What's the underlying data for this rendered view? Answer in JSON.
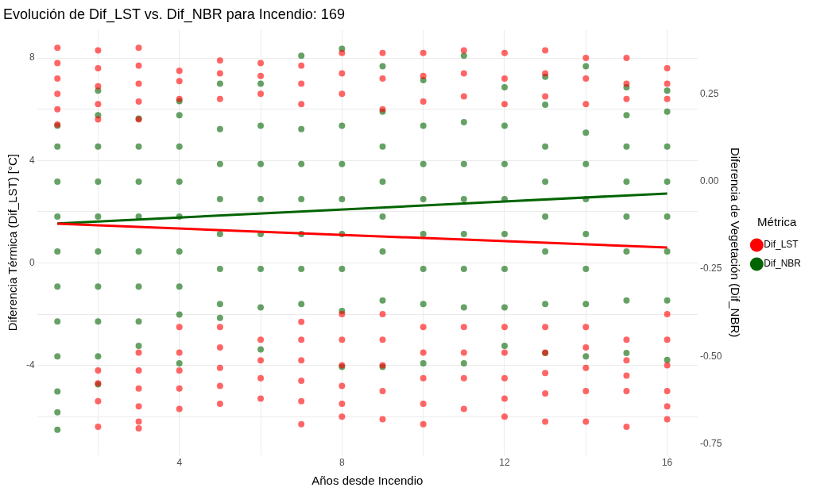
{
  "chart_data": {
    "type": "scatter",
    "title": "Evolución de Dif_LST vs. Dif_NBR para Incendio: 169",
    "xlabel": "Años desde Incendio",
    "ylabel": "Diferencia Térmica (Dif_LST) [°C]",
    "y2label": "Diferencia de Vegetación (Dif_NBR)",
    "legend_title": "Métrica",
    "legend": "right",
    "grid": true,
    "marker": "circle",
    "xlim": [
      0.5,
      16.75
    ],
    "xticks": [
      {
        "value": 2,
        "label": null
      },
      4,
      {
        "value": 6,
        "label": null
      },
      8,
      {
        "value": 10,
        "label": null
      },
      12,
      {
        "value": 14,
        "label": null
      },
      16
    ],
    "ylim": [
      -7.5,
      9.1
    ],
    "yticks": [
      {
        "value": -6,
        "label": null
      },
      -4,
      {
        "value": -2,
        "label": null
      },
      0,
      {
        "value": 2,
        "label": null
      },
      4,
      {
        "value": 6,
        "label": null
      },
      8
    ],
    "y2lim": [
      -0.782,
      0.434
    ],
    "y2ticks": [
      {
        "value": -0.75,
        "label": "-0.75"
      },
      {
        "value": -0.5,
        "label": "-0.50"
      },
      {
        "value": -0.25,
        "label": "-0.25"
      },
      {
        "value": 0,
        "label": "0.00"
      },
      {
        "value": 0.25,
        "label": "0.25"
      }
    ],
    "series": [
      {
        "name": "Dif_LST",
        "axis": "y",
        "color": "#ff0000",
        "x": [
          1,
          1,
          1,
          1,
          1,
          1,
          2,
          2,
          2,
          2,
          2,
          2,
          2,
          2,
          2,
          3,
          3,
          3,
          3,
          3,
          3,
          3,
          3,
          3,
          3,
          3,
          4,
          4,
          4,
          4,
          4,
          4,
          4,
          4,
          5,
          5,
          5,
          5,
          5,
          5,
          5,
          5,
          6,
          6,
          6,
          6,
          6,
          6,
          6,
          7,
          7,
          7,
          7,
          7,
          7,
          7,
          7,
          7,
          8,
          8,
          8,
          8,
          8,
          8,
          8,
          8,
          8,
          9,
          9,
          9,
          9,
          9,
          9,
          9,
          9,
          10,
          10,
          10,
          10,
          10,
          10,
          10,
          10,
          11,
          11,
          11,
          11,
          11,
          11,
          11,
          12,
          12,
          12,
          12,
          12,
          12,
          12,
          12,
          13,
          13,
          13,
          13,
          13,
          13,
          13,
          13,
          14,
          14,
          14,
          14,
          14,
          14,
          14,
          14,
          15,
          15,
          15,
          15,
          15,
          15,
          15,
          15,
          16,
          16,
          16,
          16,
          16,
          16,
          16,
          16,
          16
        ],
        "values": [
          8.4,
          7.8,
          7.2,
          6.6,
          6.0,
          5.4,
          8.3,
          7.6,
          6.9,
          6.2,
          5.6,
          -4.2,
          -4.7,
          -5.4,
          -6.4,
          8.4,
          7.7,
          7.0,
          6.3,
          5.6,
          -3.5,
          -4.2,
          -4.9,
          -5.6,
          -6.2,
          -6.46,
          7.5,
          7.1,
          6.4,
          -2.5,
          -3.5,
          -4.2,
          -4.9,
          -5.7,
          7.9,
          7.4,
          6.4,
          -2.5,
          -3.3,
          -4.1,
          -4.8,
          -5.5,
          7.8,
          7.3,
          6.6,
          -3.0,
          -3.8,
          -4.5,
          -5.3,
          7.7,
          7.0,
          6.2,
          -2.3,
          -3.0,
          -3.8,
          -4.6,
          -5.4,
          -6.3,
          8.2,
          7.4,
          6.6,
          -2.0,
          -3.0,
          -4.0,
          -4.8,
          -5.5,
          -6.0,
          8.2,
          7.2,
          6.0,
          -2.0,
          -3.0,
          -4.0,
          -5.0,
          -6.1,
          8.2,
          7.3,
          6.3,
          -2.5,
          -3.5,
          -4.5,
          -5.5,
          -6.3,
          8.3,
          7.4,
          6.5,
          -2.5,
          -3.5,
          -4.5,
          -5.7,
          8.2,
          7.2,
          6.2,
          -2.5,
          -3.5,
          -4.5,
          -5.3,
          -6.0,
          8.3,
          7.4,
          6.5,
          -2.5,
          -3.5,
          -4.3,
          -5.1,
          -6.2,
          8.0,
          7.2,
          6.2,
          -2.5,
          -3.3,
          -4.1,
          -5.0,
          -6.2,
          8.0,
          7.0,
          6.4,
          -3.0,
          -3.8,
          -4.4,
          -5.0,
          -6.4,
          7.6,
          7.0,
          6.4,
          -2.0,
          -3.0,
          -4.0,
          -5.0,
          -5.6,
          -6.1
        ]
      },
      {
        "name": "Dif_NBR",
        "axis": "y2",
        "color": "#006400",
        "x": [
          1,
          1,
          1,
          1,
          1,
          1,
          1,
          1,
          1,
          1,
          1,
          2,
          2,
          2,
          2,
          2,
          2,
          2,
          2,
          2,
          2,
          3,
          3,
          3,
          3,
          3,
          3,
          3,
          3,
          4,
          4,
          4,
          4,
          4,
          4,
          4,
          4,
          4,
          5,
          5,
          5,
          5,
          5,
          5,
          5,
          5,
          6,
          6,
          6,
          6,
          6,
          6,
          6,
          6,
          7,
          7,
          7,
          7,
          7,
          7,
          7,
          8,
          8,
          8,
          8,
          8,
          8,
          8,
          8,
          9,
          9,
          9,
          9,
          9,
          9,
          9,
          9,
          10,
          10,
          10,
          10,
          10,
          10,
          10,
          10,
          11,
          11,
          11,
          11,
          11,
          11,
          11,
          11,
          12,
          12,
          12,
          12,
          12,
          12,
          12,
          12,
          13,
          13,
          13,
          13,
          13,
          13,
          13,
          13,
          14,
          14,
          14,
          14,
          14,
          14,
          14,
          14,
          15,
          15,
          15,
          15,
          15,
          15,
          15,
          15,
          16,
          16,
          16,
          16,
          16,
          16,
          16,
          16
        ],
        "values": [
          0.16,
          0.1,
          0,
          -0.1,
          -0.2,
          -0.3,
          -0.4,
          -0.5,
          -0.6,
          -0.66,
          -0.71,
          0.26,
          0.19,
          0.1,
          0,
          -0.1,
          -0.2,
          -0.3,
          -0.4,
          -0.5,
          -0.58,
          0.18,
          0.1,
          0,
          -0.1,
          -0.2,
          -0.3,
          -0.4,
          -0.47,
          0.23,
          0.19,
          0.1,
          0,
          -0.1,
          -0.2,
          -0.3,
          -0.38,
          -0.52,
          0.28,
          0.15,
          0.05,
          -0.05,
          -0.15,
          -0.25,
          -0.35,
          -0.39,
          0.28,
          0.16,
          0.05,
          -0.05,
          -0.15,
          -0.25,
          -0.36,
          -0.48,
          0.36,
          0.15,
          0.05,
          -0.05,
          -0.15,
          -0.25,
          -0.35,
          0.38,
          0.16,
          0.05,
          -0.05,
          -0.15,
          -0.25,
          -0.37,
          -0.53,
          0.33,
          0.2,
          0.1,
          0,
          -0.1,
          -0.2,
          -0.34,
          -0.53,
          0.29,
          0.16,
          0.05,
          -0.05,
          -0.15,
          -0.25,
          -0.35,
          -0.52,
          0.36,
          0.17,
          0.05,
          -0.05,
          -0.15,
          -0.25,
          -0.36,
          -0.52,
          0.27,
          0.16,
          0.05,
          -0.05,
          -0.15,
          -0.25,
          -0.36,
          -0.47,
          0.3,
          0.22,
          0.1,
          0,
          -0.1,
          -0.2,
          -0.35,
          -0.49,
          0.33,
          0.14,
          0.05,
          -0.05,
          -0.15,
          -0.25,
          -0.35,
          -0.5,
          0.27,
          0.19,
          0.1,
          0,
          -0.1,
          -0.2,
          -0.34,
          -0.49,
          0.26,
          0.2,
          0.1,
          0,
          -0.1,
          -0.2,
          -0.34,
          -0.51
        ]
      },
      {
        "type": "line",
        "marker": "none",
        "axis": "y",
        "color": "#ff0000",
        "x": [
          1,
          16
        ],
        "values": [
          1.53,
          0.6
        ]
      },
      {
        "type": "line",
        "marker": "none",
        "axis": "y2",
        "color": "#006400",
        "x": [
          1,
          16
        ],
        "values": [
          -0.12,
          -0.034
        ]
      }
    ]
  }
}
